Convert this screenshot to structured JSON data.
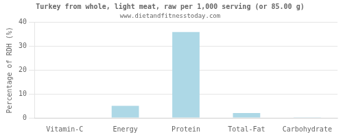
{
  "chart_data": {
    "type": "bar",
    "title": "Turkey from whole, light meat, raw per 1,000 serving (or 85.00 g)",
    "subtitle": "www.dietandfitnesstoday.com",
    "categories": [
      "Vitamin-C",
      "Energy",
      "Protein",
      "Total-Fat",
      "Carbohydrate"
    ],
    "values": [
      0,
      5,
      36,
      2,
      0.2
    ],
    "color": "#add8e6",
    "ylabel": "Percentage of RDH (%)",
    "ylim": [
      0,
      40
    ],
    "yticks": [
      0,
      10,
      20,
      30,
      40
    ],
    "grid": true
  }
}
